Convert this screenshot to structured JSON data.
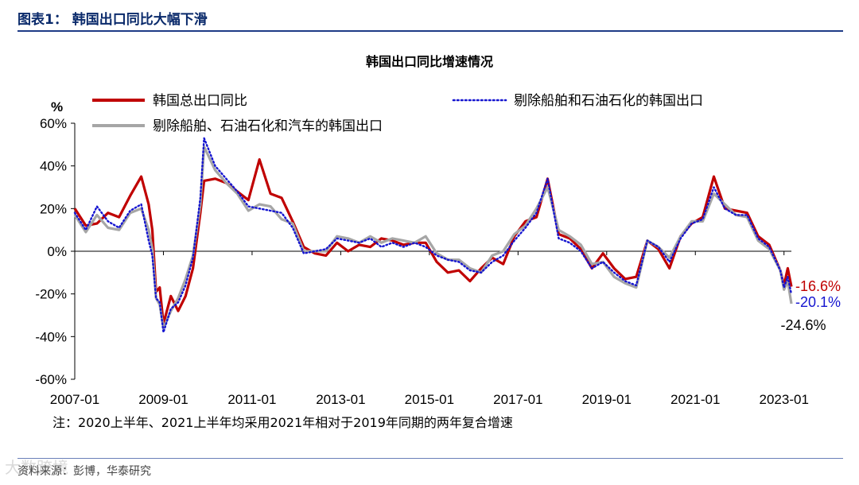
{
  "header": {
    "figure_label": "图表1：  韩国出口同比大幅下滑"
  },
  "note": "注：2020上半年、2021上半年均采用2021年相对于2019年同期的两年复合增速",
  "source": "资料来源：彭博，华泰研究",
  "watermark": "大数跨境",
  "colors": {
    "red": "#c00000",
    "blue": "#1515d0",
    "gray": "#a6a6a6",
    "header": "#0a2a6b"
  },
  "chart_data": {
    "type": "line",
    "title": "韩国出口同比增速情况",
    "ylabel": "%",
    "ylim": [
      -60,
      60
    ],
    "y_ticks": [
      -60,
      -40,
      -20,
      0,
      20,
      40,
      60
    ],
    "y_tick_labels": [
      "-60%",
      "-40%",
      "-20%",
      "0%",
      "20%",
      "40%",
      "60%"
    ],
    "x_ticks": [
      "2007-01",
      "2009-01",
      "2011-01",
      "2013-01",
      "2015-01",
      "2017-01",
      "2019-01",
      "2021-01",
      "2023-01"
    ],
    "x_range": [
      "2007-01",
      "2023-03"
    ],
    "grid": false,
    "legend_position": "top",
    "series": [
      {
        "name": "韩国总出口同比",
        "color": "#c00000",
        "style": "solid",
        "points": [
          [
            "2007-01",
            20
          ],
          [
            "2007-04",
            12
          ],
          [
            "2007-07",
            13
          ],
          [
            "2007-10",
            18
          ],
          [
            "2008-01",
            16
          ],
          [
            "2008-04",
            26
          ],
          [
            "2008-07",
            35
          ],
          [
            "2008-09",
            22
          ],
          [
            "2008-10",
            10
          ],
          [
            "2008-11",
            -19
          ],
          [
            "2008-12",
            -17
          ],
          [
            "2009-01",
            -34
          ],
          [
            "2009-03",
            -21
          ],
          [
            "2009-05",
            -28
          ],
          [
            "2009-07",
            -21
          ],
          [
            "2009-09",
            -8
          ],
          [
            "2009-11",
            18
          ],
          [
            "2009-12",
            33
          ],
          [
            "2010-03",
            34
          ],
          [
            "2010-06",
            32
          ],
          [
            "2010-09",
            28
          ],
          [
            "2010-12",
            24
          ],
          [
            "2011-03",
            43
          ],
          [
            "2011-06",
            27
          ],
          [
            "2011-09",
            25
          ],
          [
            "2011-12",
            14
          ],
          [
            "2012-03",
            2
          ],
          [
            "2012-06",
            -1
          ],
          [
            "2012-09",
            -2
          ],
          [
            "2012-12",
            4
          ],
          [
            "2013-03",
            0
          ],
          [
            "2013-06",
            3
          ],
          [
            "2013-09",
            2
          ],
          [
            "2013-12",
            6
          ],
          [
            "2014-03",
            5
          ],
          [
            "2014-06",
            3
          ],
          [
            "2014-09",
            4
          ],
          [
            "2014-12",
            4
          ],
          [
            "2015-03",
            -5
          ],
          [
            "2015-06",
            -10
          ],
          [
            "2015-09",
            -9
          ],
          [
            "2015-12",
            -14
          ],
          [
            "2016-03",
            -8
          ],
          [
            "2016-06",
            -3
          ],
          [
            "2016-09",
            -6
          ],
          [
            "2016-12",
            7
          ],
          [
            "2017-03",
            14
          ],
          [
            "2017-06",
            16
          ],
          [
            "2017-09",
            34
          ],
          [
            "2017-12",
            8
          ],
          [
            "2018-03",
            6
          ],
          [
            "2018-06",
            1
          ],
          [
            "2018-09",
            -8
          ],
          [
            "2018-12",
            -1
          ],
          [
            "2019-03",
            -8
          ],
          [
            "2019-06",
            -13
          ],
          [
            "2019-09",
            -12
          ],
          [
            "2019-12",
            5
          ],
          [
            "2020-03",
            1
          ],
          [
            "2020-06",
            -8
          ],
          [
            "2020-09",
            7
          ],
          [
            "2020-12",
            13
          ],
          [
            "2021-03",
            16
          ],
          [
            "2021-06",
            35
          ],
          [
            "2021-09",
            20
          ],
          [
            "2021-12",
            19
          ],
          [
            "2022-03",
            18
          ],
          [
            "2022-06",
            7
          ],
          [
            "2022-09",
            3
          ],
          [
            "2022-12",
            -9
          ],
          [
            "2023-01",
            -16
          ],
          [
            "2023-02",
            -8
          ],
          [
            "2023-03",
            -16.6
          ]
        ],
        "end_label": "-16.6%"
      },
      {
        "name": "剔除船舶和石油石化的韩国出口",
        "color": "#1515d0",
        "style": "dotted",
        "points": [
          [
            "2007-01",
            18
          ],
          [
            "2007-04",
            10
          ],
          [
            "2007-07",
            21
          ],
          [
            "2007-10",
            14
          ],
          [
            "2008-01",
            11
          ],
          [
            "2008-04",
            19
          ],
          [
            "2008-07",
            22
          ],
          [
            "2008-09",
            5
          ],
          [
            "2008-10",
            -2
          ],
          [
            "2008-11",
            -22
          ],
          [
            "2008-12",
            -24
          ],
          [
            "2009-01",
            -38
          ],
          [
            "2009-03",
            -27
          ],
          [
            "2009-05",
            -24
          ],
          [
            "2009-07",
            -16
          ],
          [
            "2009-09",
            -3
          ],
          [
            "2009-11",
            25
          ],
          [
            "2009-12",
            53
          ],
          [
            "2010-03",
            40
          ],
          [
            "2010-06",
            34
          ],
          [
            "2010-09",
            28
          ],
          [
            "2010-12",
            21
          ],
          [
            "2011-03",
            20
          ],
          [
            "2011-06",
            19
          ],
          [
            "2011-09",
            18
          ],
          [
            "2011-12",
            11
          ],
          [
            "2012-03",
            -1
          ],
          [
            "2012-06",
            0
          ],
          [
            "2012-09",
            1
          ],
          [
            "2012-12",
            6
          ],
          [
            "2013-03",
            5
          ],
          [
            "2013-06",
            4
          ],
          [
            "2013-09",
            6
          ],
          [
            "2013-12",
            2
          ],
          [
            "2014-03",
            4
          ],
          [
            "2014-06",
            2
          ],
          [
            "2014-09",
            4
          ],
          [
            "2014-12",
            2
          ],
          [
            "2015-03",
            -2
          ],
          [
            "2015-06",
            -4
          ],
          [
            "2015-09",
            -5
          ],
          [
            "2015-12",
            -9
          ],
          [
            "2016-03",
            -10
          ],
          [
            "2016-06",
            -5
          ],
          [
            "2016-09",
            -2
          ],
          [
            "2016-12",
            5
          ],
          [
            "2017-03",
            11
          ],
          [
            "2017-06",
            18
          ],
          [
            "2017-09",
            34
          ],
          [
            "2017-12",
            6
          ],
          [
            "2018-03",
            4
          ],
          [
            "2018-06",
            0
          ],
          [
            "2018-09",
            -8
          ],
          [
            "2018-12",
            -5
          ],
          [
            "2019-03",
            -10
          ],
          [
            "2019-06",
            -14
          ],
          [
            "2019-09",
            -16
          ],
          [
            "2019-12",
            5
          ],
          [
            "2020-03",
            2
          ],
          [
            "2020-06",
            -5
          ],
          [
            "2020-09",
            6
          ],
          [
            "2020-12",
            13
          ],
          [
            "2021-03",
            15
          ],
          [
            "2021-06",
            30
          ],
          [
            "2021-09",
            20
          ],
          [
            "2021-12",
            17
          ],
          [
            "2022-03",
            17
          ],
          [
            "2022-06",
            6
          ],
          [
            "2022-09",
            2
          ],
          [
            "2022-12",
            -9
          ],
          [
            "2023-01",
            -17
          ],
          [
            "2023-02",
            -12
          ],
          [
            "2023-03",
            -20.1
          ]
        ],
        "end_label": "-20.1%"
      },
      {
        "name": "剔除船舶、石油石化和汽车的韩国出口",
        "color": "#a6a6a6",
        "style": "solid",
        "points": [
          [
            "2007-01",
            17
          ],
          [
            "2007-04",
            9
          ],
          [
            "2007-07",
            17
          ],
          [
            "2007-10",
            11
          ],
          [
            "2008-01",
            10
          ],
          [
            "2008-04",
            18
          ],
          [
            "2008-07",
            20
          ],
          [
            "2008-09",
            10
          ],
          [
            "2008-10",
            1
          ],
          [
            "2008-11",
            -22
          ],
          [
            "2008-12",
            -25
          ],
          [
            "2009-01",
            -36
          ],
          [
            "2009-03",
            -28
          ],
          [
            "2009-05",
            -22
          ],
          [
            "2009-07",
            -13
          ],
          [
            "2009-09",
            -2
          ],
          [
            "2009-11",
            22
          ],
          [
            "2009-12",
            49
          ],
          [
            "2010-03",
            38
          ],
          [
            "2010-06",
            32
          ],
          [
            "2010-09",
            27
          ],
          [
            "2010-12",
            19
          ],
          [
            "2011-03",
            22
          ],
          [
            "2011-06",
            21
          ],
          [
            "2011-09",
            15
          ],
          [
            "2011-12",
            13
          ],
          [
            "2012-03",
            0
          ],
          [
            "2012-06",
            0
          ],
          [
            "2012-09",
            0
          ],
          [
            "2012-12",
            7
          ],
          [
            "2013-03",
            6
          ],
          [
            "2013-06",
            4
          ],
          [
            "2013-09",
            7
          ],
          [
            "2013-12",
            4
          ],
          [
            "2014-03",
            6
          ],
          [
            "2014-06",
            5
          ],
          [
            "2014-09",
            4
          ],
          [
            "2014-12",
            7
          ],
          [
            "2015-03",
            -1
          ],
          [
            "2015-06",
            -4
          ],
          [
            "2015-09",
            -4
          ],
          [
            "2015-12",
            -8
          ],
          [
            "2016-03",
            -10
          ],
          [
            "2016-06",
            -2
          ],
          [
            "2016-09",
            0
          ],
          [
            "2016-12",
            8
          ],
          [
            "2017-03",
            12
          ],
          [
            "2017-06",
            20
          ],
          [
            "2017-09",
            30
          ],
          [
            "2017-12",
            10
          ],
          [
            "2018-03",
            7
          ],
          [
            "2018-06",
            3
          ],
          [
            "2018-09",
            -6
          ],
          [
            "2018-12",
            -5
          ],
          [
            "2019-03",
            -12
          ],
          [
            "2019-06",
            -15
          ],
          [
            "2019-09",
            -17
          ],
          [
            "2019-12",
            5
          ],
          [
            "2020-03",
            2
          ],
          [
            "2020-06",
            -3
          ],
          [
            "2020-09",
            7
          ],
          [
            "2020-12",
            14
          ],
          [
            "2021-03",
            14
          ],
          [
            "2021-06",
            27
          ],
          [
            "2021-09",
            22
          ],
          [
            "2021-12",
            17
          ],
          [
            "2022-03",
            16
          ],
          [
            "2022-06",
            5
          ],
          [
            "2022-09",
            1
          ],
          [
            "2022-12",
            -9
          ],
          [
            "2023-01",
            -18
          ],
          [
            "2023-02",
            -14
          ],
          [
            "2023-03",
            -24.6
          ]
        ],
        "end_label": "-24.6%"
      }
    ]
  }
}
